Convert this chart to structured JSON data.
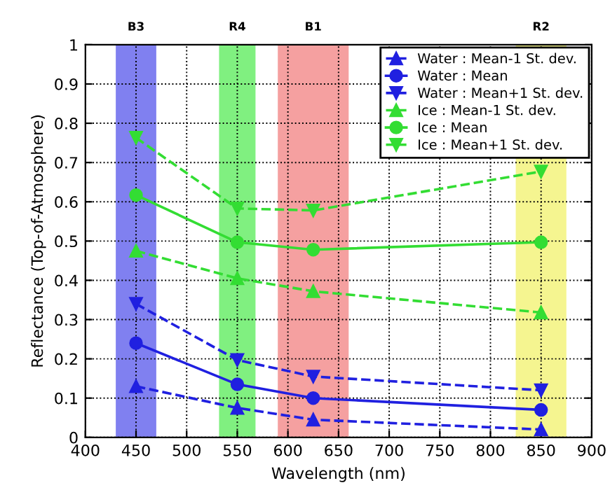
{
  "chart_data": {
    "type": "line",
    "xlabel": "Wavelength (nm)",
    "ylabel": "Reflectance (Top-of-Atmosphere)",
    "xlim": [
      400,
      900
    ],
    "xticks": [
      400,
      450,
      500,
      550,
      600,
      650,
      700,
      750,
      800,
      850,
      900
    ],
    "ylim": [
      0,
      1
    ],
    "yticks": [
      0,
      0.1,
      0.2,
      0.3,
      0.4,
      0.5,
      0.6,
      0.7,
      0.8,
      0.9,
      1
    ],
    "x": [
      450,
      550,
      625,
      850
    ],
    "series": [
      {
        "name": "Water : Mean-1 St. dev.",
        "color": "#2020e0",
        "marker": "triangle",
        "line_style": "dashed",
        "values": [
          0.13,
          0.075,
          0.045,
          0.02
        ]
      },
      {
        "name": "Water : Mean",
        "color": "#2020e0",
        "marker": "circle",
        "line_style": "solid",
        "values": [
          0.24,
          0.135,
          0.1,
          0.07
        ]
      },
      {
        "name": "Water : Mean+1 St. dev.",
        "color": "#2020e0",
        "marker": "triangle_down",
        "line_style": "dashed",
        "values": [
          0.34,
          0.197,
          0.155,
          0.12
        ]
      },
      {
        "name": "Ice : Mean-1 St. dev.",
        "color": "#33dd33",
        "marker": "triangle",
        "line_style": "dashed",
        "values": [
          0.475,
          0.405,
          0.372,
          0.318
        ]
      },
      {
        "name": "Ice : Mean",
        "color": "#33dd33",
        "marker": "circle",
        "line_style": "solid",
        "values": [
          0.617,
          0.497,
          0.478,
          0.497
        ]
      },
      {
        "name": "Ice : Mean+1 St. dev.",
        "color": "#33dd33",
        "marker": "triangle_down",
        "line_style": "dashed",
        "values": [
          0.763,
          0.583,
          0.578,
          0.677
        ]
      }
    ],
    "bands": [
      {
        "axis": "x",
        "from": 430,
        "to": 470,
        "color": "#8080f0",
        "label": "B3"
      },
      {
        "axis": "x",
        "from": 532,
        "to": 568,
        "color": "#80f080",
        "label": "R4"
      },
      {
        "axis": "x",
        "from": 590,
        "to": 660,
        "color": "#f5a0a0",
        "label": "B1"
      },
      {
        "axis": "x",
        "from": 825,
        "to": 875,
        "color": "#f5f590",
        "label": "R2"
      }
    ],
    "grid": true,
    "legend": "top right"
  }
}
